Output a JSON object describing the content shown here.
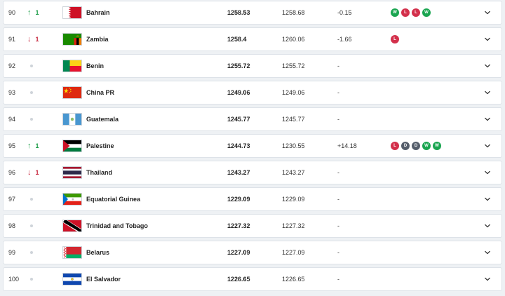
{
  "rows": [
    {
      "rank": "90",
      "move": "up",
      "delta": "1",
      "flag": "bahrain",
      "team": "Bahrain",
      "pts": "1258.53",
      "prev": "1258.68",
      "diff": "-0.15",
      "form": [
        "W",
        "L",
        "L",
        "W"
      ]
    },
    {
      "rank": "91",
      "move": "down",
      "delta": "1",
      "flag": "zambia",
      "team": "Zambia",
      "pts": "1258.4",
      "prev": "1260.06",
      "diff": "-1.66",
      "form": [
        "L"
      ]
    },
    {
      "rank": "92",
      "move": "same",
      "delta": "",
      "flag": "benin",
      "team": "Benin",
      "pts": "1255.72",
      "prev": "1255.72",
      "diff": "-",
      "form": []
    },
    {
      "rank": "93",
      "move": "same",
      "delta": "",
      "flag": "china",
      "team": "China PR",
      "pts": "1249.06",
      "prev": "1249.06",
      "diff": "-",
      "form": []
    },
    {
      "rank": "94",
      "move": "same",
      "delta": "",
      "flag": "guatemala",
      "team": "Guatemala",
      "pts": "1245.77",
      "prev": "1245.77",
      "diff": "-",
      "form": []
    },
    {
      "rank": "95",
      "move": "up",
      "delta": "1",
      "flag": "palestine",
      "team": "Palestine",
      "pts": "1244.73",
      "prev": "1230.55",
      "diff": "+14.18",
      "form": [
        "L",
        "D",
        "D",
        "W",
        "W"
      ]
    },
    {
      "rank": "96",
      "move": "down",
      "delta": "1",
      "flag": "thailand",
      "team": "Thailand",
      "pts": "1243.27",
      "prev": "1243.27",
      "diff": "-",
      "form": []
    },
    {
      "rank": "97",
      "move": "same",
      "delta": "",
      "flag": "equatorial-guinea",
      "team": "Equatorial Guinea",
      "pts": "1229.09",
      "prev": "1229.09",
      "diff": "-",
      "form": []
    },
    {
      "rank": "98",
      "move": "same",
      "delta": "",
      "flag": "trinidad",
      "team": "Trinidad and Tobago",
      "pts": "1227.32",
      "prev": "1227.32",
      "diff": "-",
      "form": []
    },
    {
      "rank": "99",
      "move": "same",
      "delta": "",
      "flag": "belarus",
      "team": "Belarus",
      "pts": "1227.09",
      "prev": "1227.09",
      "diff": "-",
      "form": []
    },
    {
      "rank": "100",
      "move": "same",
      "delta": "",
      "flag": "el-salvador",
      "team": "El Salvador",
      "pts": "1226.65",
      "prev": "1226.65",
      "diff": "-",
      "form": []
    }
  ],
  "colors": {
    "win": "#1aa550",
    "loss": "#d3304b",
    "draw": "#555e6b",
    "up": "#1f9e4a",
    "down": "#c8283f"
  }
}
